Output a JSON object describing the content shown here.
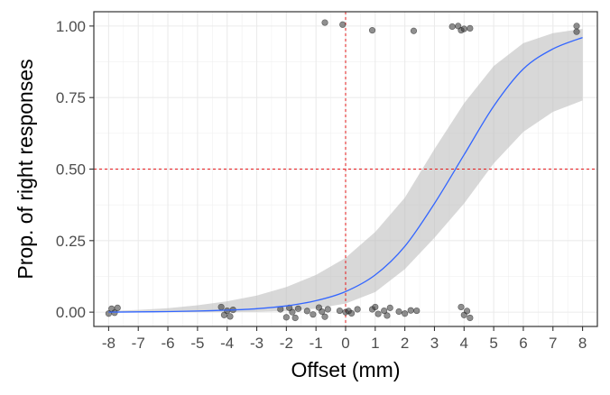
{
  "chart_data": {
    "type": "scatter",
    "xlabel": "Offset (mm)",
    "ylabel": "Prop. of right responses",
    "xlim": [
      -8.5,
      8.5
    ],
    "ylim": [
      -0.05,
      1.05
    ],
    "x_ticks": [
      -8,
      -7,
      -6,
      -5,
      -4,
      -3,
      -2,
      -1,
      0,
      1,
      2,
      3,
      4,
      5,
      6,
      7,
      8
    ],
    "x_tick_labels": [
      "-8",
      "-7",
      "-6",
      "-5",
      "-4",
      "-3",
      "-2",
      "-1",
      "0",
      "1",
      "2",
      "3",
      "4",
      "5",
      "6",
      "7",
      "8"
    ],
    "y_ticks": [
      0,
      0.25,
      0.5,
      0.75,
      1
    ],
    "y_tick_labels": [
      "0.00",
      "0.25",
      "0.50",
      "0.75",
      "1.00"
    ],
    "grid": true,
    "reference_lines": {
      "x": 0,
      "y": 0.5,
      "color": "#e41a1c"
    },
    "colors": {
      "points": "#333333",
      "fit": "#3366ff",
      "ribbon": "#bebebe"
    },
    "points": [
      {
        "x": -8.0,
        "y": -0.005
      },
      {
        "x": -7.9,
        "y": 0.012
      },
      {
        "x": -7.7,
        "y": 0.015
      },
      {
        "x": -7.8,
        "y": -0.002
      },
      {
        "x": -4.2,
        "y": 0.018
      },
      {
        "x": -4.1,
        "y": -0.01
      },
      {
        "x": -4.0,
        "y": 0.005
      },
      {
        "x": -3.9,
        "y": -0.015
      },
      {
        "x": -3.8,
        "y": 0.008
      },
      {
        "x": -2.2,
        "y": 0.01
      },
      {
        "x": -2.0,
        "y": -0.018
      },
      {
        "x": -1.9,
        "y": 0.015
      },
      {
        "x": -1.8,
        "y": 0.0
      },
      {
        "x": -1.7,
        "y": -0.02
      },
      {
        "x": -1.6,
        "y": 0.012
      },
      {
        "x": -1.3,
        "y": 0.004
      },
      {
        "x": -1.1,
        "y": -0.008
      },
      {
        "x": -0.9,
        "y": 0.016
      },
      {
        "x": -0.8,
        "y": 0.002
      },
      {
        "x": -0.7,
        "y": -0.016
      },
      {
        "x": -0.6,
        "y": 0.01
      },
      {
        "x": -0.2,
        "y": 0.005
      },
      {
        "x": 0.0,
        "y": 0.0
      },
      {
        "x": 0.1,
        "y": 0.004
      },
      {
        "x": 0.2,
        "y": -0.004
      },
      {
        "x": 0.4,
        "y": 0.01
      },
      {
        "x": 0.9,
        "y": 0.01
      },
      {
        "x": 1.0,
        "y": 0.018
      },
      {
        "x": 1.1,
        "y": -0.006
      },
      {
        "x": 1.3,
        "y": 0.005
      },
      {
        "x": 1.4,
        "y": -0.012
      },
      {
        "x": 1.5,
        "y": 0.015
      },
      {
        "x": 1.8,
        "y": 0.002
      },
      {
        "x": 2.0,
        "y": -0.005
      },
      {
        "x": 2.2,
        "y": 0.006
      },
      {
        "x": 2.4,
        "y": 0.005
      },
      {
        "x": 3.9,
        "y": 0.018
      },
      {
        "x": 4.0,
        "y": -0.01
      },
      {
        "x": 4.1,
        "y": 0.004
      },
      {
        "x": 4.2,
        "y": -0.02
      },
      {
        "x": -0.7,
        "y": 1.012
      },
      {
        "x": -0.1,
        "y": 1.005
      },
      {
        "x": 0.9,
        "y": 0.985
      },
      {
        "x": 2.3,
        "y": 0.983
      },
      {
        "x": 3.6,
        "y": 0.998
      },
      {
        "x": 3.8,
        "y": 1.0
      },
      {
        "x": 3.9,
        "y": 0.985
      },
      {
        "x": 4.0,
        "y": 0.99
      },
      {
        "x": 4.2,
        "y": 0.992
      },
      {
        "x": 7.8,
        "y": 1.0
      },
      {
        "x": 7.8,
        "y": 0.98
      }
    ],
    "fit": {
      "x": [
        -8,
        -7,
        -6,
        -5,
        -4,
        -3,
        -2,
        -1,
        0,
        1,
        2,
        3,
        4,
        5,
        6,
        7,
        8
      ],
      "y": [
        0.0,
        0.001,
        0.002,
        0.004,
        0.007,
        0.012,
        0.022,
        0.04,
        0.072,
        0.13,
        0.23,
        0.38,
        0.55,
        0.72,
        0.85,
        0.92,
        0.96
      ],
      "lower": [
        0.0,
        0.0,
        0.0,
        0.0,
        0.0,
        0.001,
        0.004,
        0.012,
        0.03,
        0.07,
        0.15,
        0.26,
        0.38,
        0.52,
        0.63,
        0.7,
        0.74
      ],
      "upper": [
        0.004,
        0.008,
        0.014,
        0.024,
        0.038,
        0.058,
        0.088,
        0.13,
        0.19,
        0.28,
        0.4,
        0.57,
        0.73,
        0.86,
        0.94,
        0.975,
        0.99
      ]
    }
  }
}
